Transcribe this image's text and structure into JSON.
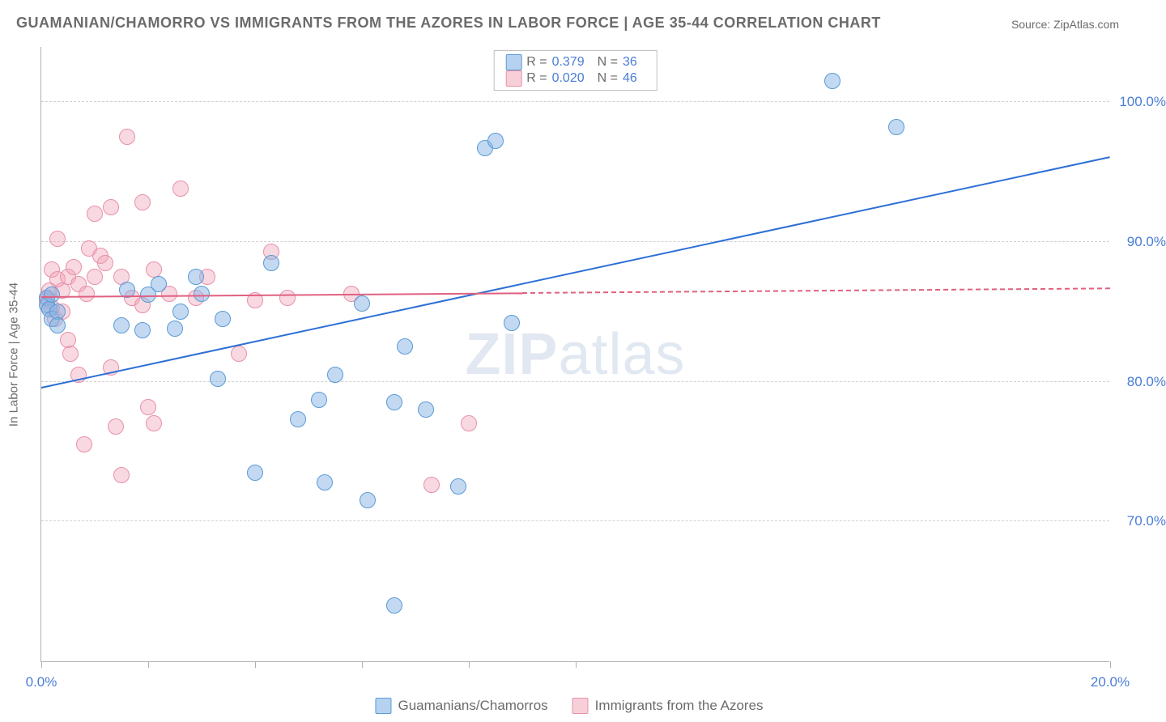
{
  "title": "GUAMANIAN/CHAMORRO VS IMMIGRANTS FROM THE AZORES IN LABOR FORCE | AGE 35-44 CORRELATION CHART",
  "source": "Source: ZipAtlas.com",
  "watermark_prefix": "ZIP",
  "watermark_suffix": "atlas",
  "yaxis_title": "In Labor Force | Age 35-44",
  "chart": {
    "type": "scatter",
    "xlim": [
      0,
      20
    ],
    "ylim": [
      60,
      104
    ],
    "xticks": [
      0,
      2,
      4,
      6,
      8,
      10,
      20
    ],
    "xtick_labels": {
      "0": "0.0%",
      "20": "20.0%"
    },
    "yticks": [
      70,
      80,
      90,
      100
    ],
    "ytick_labels": {
      "70": "70.0%",
      "80": "80.0%",
      "90": "90.0%",
      "100": "100.0%"
    },
    "background_color": "#ffffff",
    "grid_color": "#d0d0d0",
    "marker_radius": 10,
    "series": [
      {
        "name": "Guamanians/Chamorros",
        "color_fill": "rgba(135,180,230,0.5)",
        "color_stroke": "#5a9bd5",
        "r": "0.379",
        "n": "36",
        "trend": {
          "y_at_x0": 79.5,
          "y_at_x20": 96.0,
          "solid_until_x": 20,
          "color": "#2d6fd6",
          "width": 2.5
        },
        "points": [
          [
            0.1,
            86.0
          ],
          [
            0.1,
            85.5
          ],
          [
            0.15,
            85.2
          ],
          [
            0.2,
            84.5
          ],
          [
            0.2,
            86.2
          ],
          [
            0.3,
            85.0
          ],
          [
            0.3,
            84.0
          ],
          [
            1.5,
            84.0
          ],
          [
            1.6,
            86.6
          ],
          [
            1.9,
            83.7
          ],
          [
            2.0,
            86.2
          ],
          [
            2.2,
            87.0
          ],
          [
            2.5,
            83.8
          ],
          [
            2.6,
            85.0
          ],
          [
            2.9,
            87.5
          ],
          [
            3.0,
            86.3
          ],
          [
            3.3,
            80.2
          ],
          [
            3.4,
            84.5
          ],
          [
            4.0,
            73.5
          ],
          [
            4.3,
            88.5
          ],
          [
            4.8,
            77.3
          ],
          [
            5.2,
            78.7
          ],
          [
            5.3,
            72.8
          ],
          [
            5.5,
            80.5
          ],
          [
            6.0,
            85.6
          ],
          [
            6.1,
            71.5
          ],
          [
            6.6,
            78.5
          ],
          [
            6.6,
            64.0
          ],
          [
            6.8,
            82.5
          ],
          [
            7.2,
            78.0
          ],
          [
            7.8,
            72.5
          ],
          [
            8.8,
            84.2
          ],
          [
            8.3,
            96.7
          ],
          [
            8.5,
            97.2
          ],
          [
            14.8,
            101.5
          ],
          [
            16.0,
            98.2
          ]
        ]
      },
      {
        "name": "Immigrants from the Azores",
        "color_fill": "rgba(240,160,180,0.4)",
        "color_stroke": "#e890a8",
        "r": "0.020",
        "n": "46",
        "trend": {
          "y_at_x0": 86.0,
          "y_at_x20": 86.6,
          "solid_until_x": 9,
          "color": "#e06080",
          "width": 2
        },
        "points": [
          [
            0.1,
            85.8
          ],
          [
            0.1,
            86.0
          ],
          [
            0.2,
            85.3
          ],
          [
            0.15,
            86.5
          ],
          [
            0.2,
            88.0
          ],
          [
            0.25,
            84.5
          ],
          [
            0.3,
            90.2
          ],
          [
            0.3,
            87.3
          ],
          [
            0.4,
            86.5
          ],
          [
            0.4,
            85.0
          ],
          [
            0.5,
            83.0
          ],
          [
            0.5,
            87.5
          ],
          [
            0.55,
            82.0
          ],
          [
            0.6,
            88.2
          ],
          [
            0.7,
            87.0
          ],
          [
            0.7,
            80.5
          ],
          [
            0.85,
            86.3
          ],
          [
            0.8,
            75.5
          ],
          [
            0.9,
            89.5
          ],
          [
            1.0,
            92.0
          ],
          [
            1.0,
            87.5
          ],
          [
            1.1,
            89.0
          ],
          [
            1.2,
            88.5
          ],
          [
            1.3,
            92.5
          ],
          [
            1.3,
            81.0
          ],
          [
            1.4,
            76.8
          ],
          [
            1.5,
            87.5
          ],
          [
            1.5,
            73.3
          ],
          [
            1.6,
            97.5
          ],
          [
            1.7,
            86.0
          ],
          [
            1.9,
            92.8
          ],
          [
            1.9,
            85.5
          ],
          [
            2.0,
            78.2
          ],
          [
            2.1,
            88.0
          ],
          [
            2.1,
            77.0
          ],
          [
            2.4,
            86.3
          ],
          [
            2.6,
            93.8
          ],
          [
            2.9,
            86.0
          ],
          [
            3.1,
            87.5
          ],
          [
            3.7,
            82.0
          ],
          [
            4.0,
            85.8
          ],
          [
            4.3,
            89.3
          ],
          [
            4.6,
            86.0
          ],
          [
            5.8,
            86.3
          ],
          [
            7.3,
            72.6
          ],
          [
            8.0,
            77.0
          ]
        ]
      }
    ]
  },
  "statbox": {
    "r_label": "R =",
    "n_label": "N ="
  }
}
